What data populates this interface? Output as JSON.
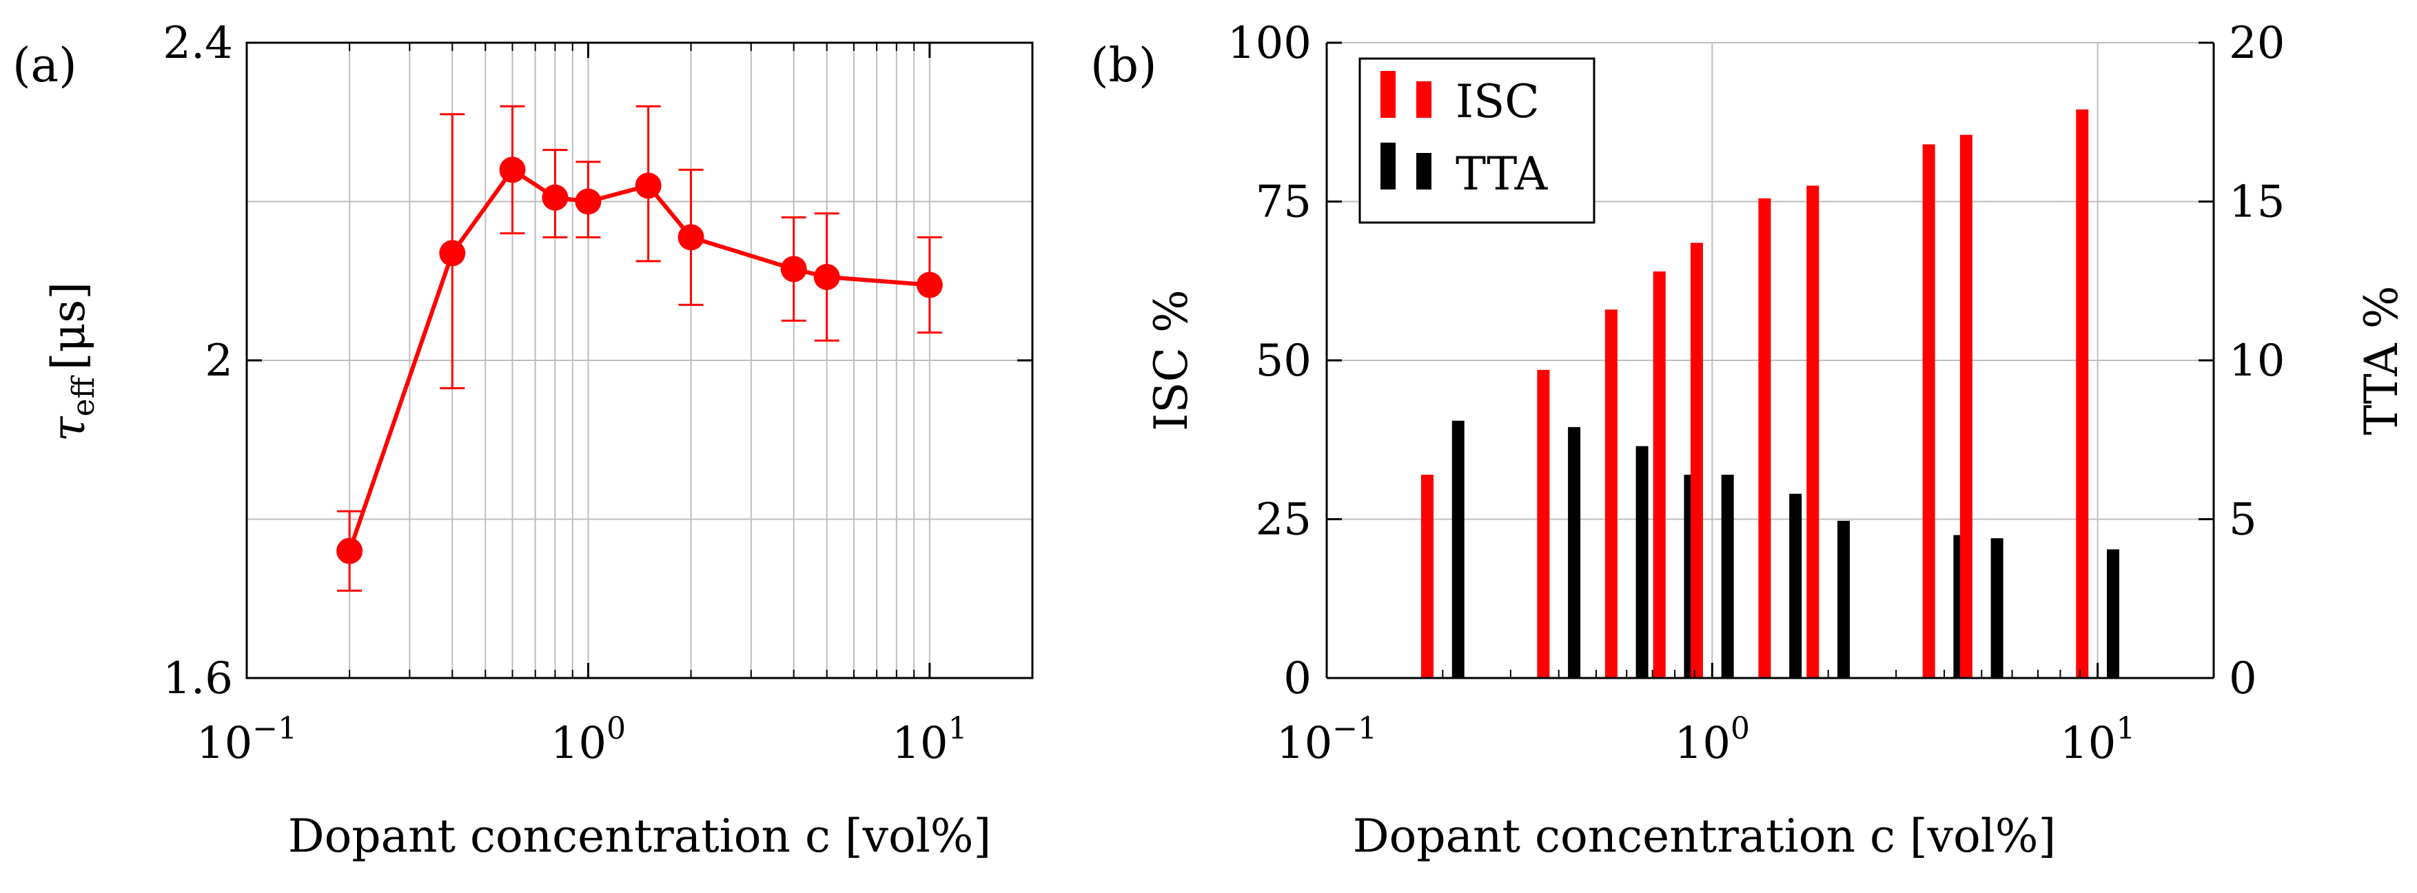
{
  "panels": {
    "a": {
      "label": "(a)",
      "ylabel_symbol": "τ",
      "ylabel_sub": "eff",
      "ylabel_unit": "[μs]",
      "xlabel": "Dopant concentration c [vol%]"
    },
    "b": {
      "label": "(b)",
      "ylabel_left": "ISC %",
      "ylabel_right": "TTA %",
      "xlabel": "Dopant concentration c [vol%]"
    }
  },
  "colors": {
    "isc": "#ff0000",
    "tta": "#000000",
    "grid": "#bdbdbd",
    "axis": "#000000"
  },
  "chart_data": [
    {
      "id": "a",
      "type": "line",
      "title": "",
      "xlabel": "Dopant concentration c [vol%]",
      "ylabel": "τeff [μs]",
      "xscale": "log",
      "xlim": [
        0.1,
        20
      ],
      "ylim": [
        1.6,
        2.4
      ],
      "x_ticks": [
        0.1,
        1,
        10
      ],
      "x_tick_labels": [
        "10−1",
        "100",
        "101"
      ],
      "y_ticks": [
        1.6,
        2.0,
        2.4
      ],
      "y_tick_labels": [
        "1.6",
        "2",
        "2.4"
      ],
      "grid": true,
      "series": [
        {
          "name": "tau_eff",
          "color": "#ff0000",
          "x": [
            0.2,
            0.4,
            0.6,
            0.8,
            1.0,
            1.5,
            2.0,
            4.0,
            5.0,
            10.0
          ],
          "y": [
            1.76,
            2.135,
            2.24,
            2.205,
            2.2,
            2.22,
            2.155,
            2.115,
            2.105,
            2.095
          ],
          "err_low": [
            0.05,
            0.17,
            0.08,
            0.05,
            0.045,
            0.095,
            0.085,
            0.065,
            0.08,
            0.06
          ],
          "err_high": [
            0.05,
            0.175,
            0.08,
            0.06,
            0.05,
            0.1,
            0.085,
            0.065,
            0.08,
            0.06
          ]
        }
      ]
    },
    {
      "id": "b",
      "type": "bar",
      "title": "",
      "xlabel": "Dopant concentration c [vol%]",
      "xscale": "log",
      "xlim": [
        0.1,
        20
      ],
      "x_ticks": [
        0.1,
        1,
        10
      ],
      "x_tick_labels": [
        "10−1",
        "100",
        "101"
      ],
      "ylabel_left": "ISC %",
      "ylim_left": [
        0,
        100
      ],
      "y_ticks_left": [
        0,
        25,
        50,
        75,
        100
      ],
      "ylabel_right": "TTA %",
      "ylim_right": [
        0,
        20
      ],
      "y_ticks_right": [
        0,
        5,
        10,
        15,
        20
      ],
      "legend_position": "top-left",
      "grid": true,
      "x": [
        0.2,
        0.4,
        0.6,
        0.8,
        1.0,
        1.5,
        2.0,
        4.0,
        5.0,
        10.0
      ],
      "series": [
        {
          "name": "ISC",
          "axis": "left",
          "color": "#ff0000",
          "values": [
            32,
            48.5,
            58,
            64,
            68.5,
            75.5,
            77.5,
            84,
            85.5,
            89.5
          ]
        },
        {
          "name": "TTA",
          "axis": "right",
          "color": "#000000",
          "values": [
            8.1,
            7.9,
            7.3,
            6.4,
            6.4,
            5.8,
            4.95,
            4.5,
            4.4,
            4.05
          ]
        }
      ]
    }
  ]
}
